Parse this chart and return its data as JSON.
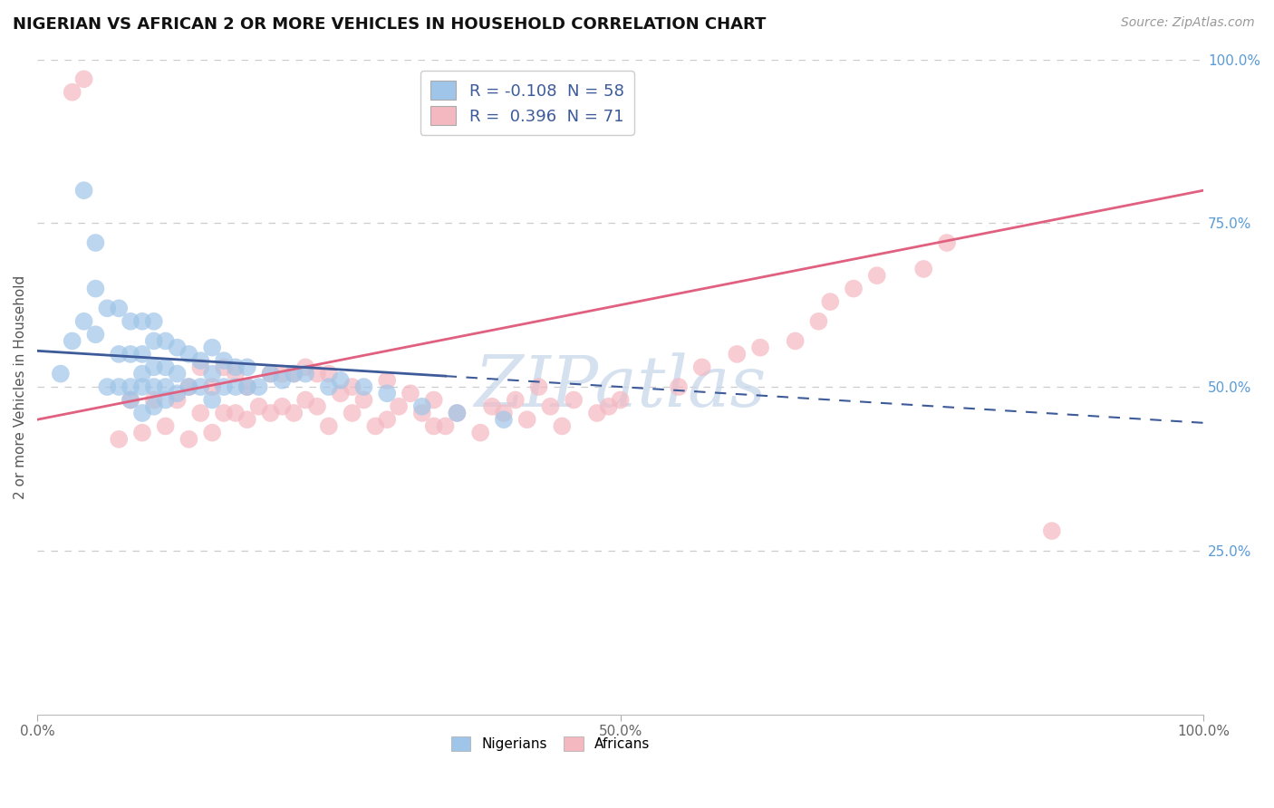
{
  "title": "NIGERIAN VS AFRICAN 2 OR MORE VEHICLES IN HOUSEHOLD CORRELATION CHART",
  "source": "Source: ZipAtlas.com",
  "ylabel": "2 or more Vehicles in Household",
  "watermark": "ZIPatlas",
  "legend_r_blue": "-0.108",
  "legend_n_blue": "58",
  "legend_r_pink": "0.396",
  "legend_n_pink": "71",
  "xlim": [
    0,
    100
  ],
  "ylim": [
    0,
    100
  ],
  "blue_color": "#9fc5e8",
  "pink_color": "#f4b8c1",
  "blue_line_color": "#3d5a99",
  "pink_line_color": "#e06080",
  "background_color": "#ffffff",
  "grid_color": "#cccccc",
  "nigerians_x": [
    2,
    3,
    4,
    4,
    5,
    5,
    5,
    6,
    6,
    7,
    7,
    7,
    8,
    8,
    8,
    8,
    9,
    9,
    9,
    9,
    9,
    10,
    10,
    10,
    10,
    10,
    11,
    11,
    11,
    11,
    12,
    12,
    12,
    13,
    13,
    14,
    14,
    15,
    15,
    15,
    16,
    16,
    17,
    17,
    18,
    18,
    19,
    20,
    21,
    22,
    23,
    25,
    26,
    28,
    30,
    33,
    36,
    40
  ],
  "nigerians_y": [
    52,
    57,
    60,
    80,
    58,
    65,
    72,
    50,
    62,
    50,
    55,
    62,
    48,
    50,
    55,
    60,
    46,
    50,
    52,
    55,
    60,
    47,
    50,
    53,
    57,
    60,
    48,
    50,
    53,
    57,
    49,
    52,
    56,
    50,
    55,
    50,
    54,
    48,
    52,
    56,
    50,
    54,
    50,
    53,
    50,
    53,
    50,
    52,
    51,
    52,
    52,
    50,
    51,
    50,
    49,
    47,
    46,
    45
  ],
  "africans_x": [
    3,
    4,
    7,
    8,
    9,
    10,
    11,
    12,
    13,
    13,
    14,
    14,
    15,
    15,
    16,
    16,
    17,
    17,
    18,
    18,
    19,
    20,
    20,
    21,
    21,
    22,
    22,
    23,
    23,
    24,
    24,
    25,
    25,
    26,
    27,
    27,
    28,
    29,
    30,
    30,
    31,
    32,
    33,
    34,
    34,
    35,
    36,
    38,
    39,
    40,
    41,
    42,
    43,
    44,
    45,
    46,
    48,
    49,
    50,
    55,
    57,
    60,
    62,
    65,
    67,
    68,
    70,
    72,
    76,
    78,
    87
  ],
  "africans_y": [
    95,
    97,
    42,
    48,
    43,
    48,
    44,
    48,
    42,
    50,
    46,
    53,
    43,
    50,
    46,
    53,
    46,
    52,
    45,
    50,
    47,
    46,
    52,
    47,
    52,
    46,
    52,
    48,
    53,
    47,
    52,
    44,
    52,
    49,
    46,
    50,
    48,
    44,
    45,
    51,
    47,
    49,
    46,
    44,
    48,
    44,
    46,
    43,
    47,
    46,
    48,
    45,
    50,
    47,
    44,
    48,
    46,
    47,
    48,
    50,
    53,
    55,
    56,
    57,
    60,
    63,
    65,
    67,
    68,
    72,
    28
  ],
  "blue_line_x0": 0,
  "blue_line_y0": 55.5,
  "blue_line_x1": 100,
  "blue_line_y1": 44.5,
  "pink_line_x0": 0,
  "pink_line_y0": 45.0,
  "pink_line_x1": 100,
  "pink_line_y1": 80.0
}
